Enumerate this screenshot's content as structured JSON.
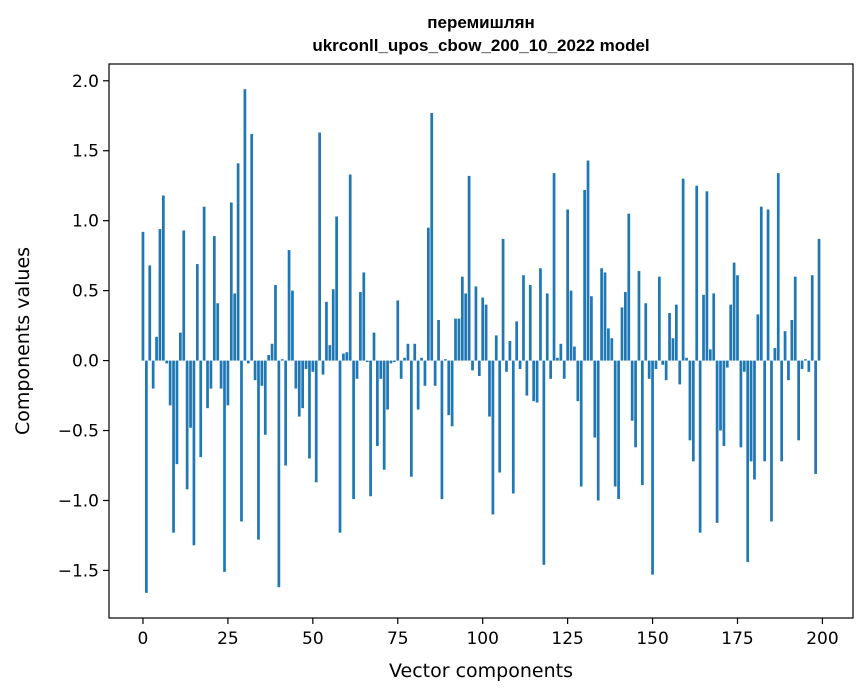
{
  "chart_data": {
    "type": "bar",
    "title_line1": "перемишлян",
    "title_line2": "ukrconll_upos_cbow_200_10_2022 model",
    "xlabel": "Vector components",
    "ylabel": "Components values",
    "xlim": [
      -10,
      209
    ],
    "ylim": [
      -1.84,
      2.12
    ],
    "xticks": [
      0,
      25,
      50,
      75,
      100,
      125,
      150,
      175,
      200
    ],
    "yticks": [
      -1.5,
      -1.0,
      -0.5,
      0.0,
      0.5,
      1.0,
      1.5,
      2.0
    ],
    "ytick_labels": [
      "−1.5",
      "−1.0",
      "−0.5",
      "0.0",
      "0.5",
      "1.0",
      "1.5",
      "2.0"
    ],
    "bar_color": "#1f77b4",
    "bar_width": 0.8,
    "values": [
      0.92,
      -1.66,
      0.68,
      -0.2,
      0.17,
      0.94,
      1.18,
      -0.02,
      -0.32,
      -1.23,
      -0.74,
      0.2,
      0.93,
      -0.92,
      -0.48,
      -1.32,
      0.69,
      -0.69,
      1.1,
      -0.34,
      -0.2,
      0.89,
      0.41,
      -0.2,
      -1.51,
      -0.32,
      1.13,
      0.48,
      1.41,
      -1.15,
      1.94,
      -0.02,
      1.62,
      -0.14,
      -1.28,
      -0.18,
      -0.53,
      0.04,
      0.12,
      0.54,
      -1.62,
      0.01,
      -0.75,
      0.79,
      0.5,
      -0.2,
      -0.4,
      -0.34,
      -0.06,
      -0.7,
      -0.08,
      -0.87,
      1.63,
      -0.1,
      0.42,
      0.11,
      0.51,
      1.03,
      -1.23,
      0.05,
      0.06,
      1.33,
      -0.99,
      -0.13,
      0.49,
      0.63,
      -0.01,
      -0.97,
      0.2,
      -0.61,
      -0.13,
      -0.78,
      -0.35,
      -0.02,
      -0.01,
      0.43,
      -0.13,
      0.02,
      0.12,
      -0.83,
      0.12,
      -0.35,
      0.02,
      -0.18,
      0.95,
      1.77,
      -0.18,
      0.29,
      -0.99,
      0.01,
      -0.39,
      -0.47,
      0.3,
      0.3,
      0.6,
      0.48,
      1.32,
      -0.07,
      0.53,
      -0.11,
      0.45,
      0.4,
      -0.4,
      -1.1,
      0.18,
      -0.8,
      0.87,
      -0.08,
      0.14,
      -0.95,
      0.28,
      -0.06,
      0.61,
      -0.25,
      0.54,
      -0.29,
      -0.3,
      0.66,
      -1.46,
      0.48,
      -0.13,
      1.34,
      0.02,
      0.12,
      -0.13,
      1.08,
      0.5,
      0.1,
      -0.29,
      -0.9,
      1.22,
      1.43,
      0.46,
      -0.55,
      -1.0,
      0.66,
      0.63,
      0.23,
      0.16,
      -0.9,
      -0.99,
      0.38,
      0.49,
      1.05,
      -0.43,
      -0.62,
      0.64,
      -0.89,
      0.41,
      -0.13,
      -1.53,
      -0.06,
      0.6,
      -0.03,
      -0.14,
      0.34,
      0.16,
      0.4,
      -0.17,
      1.3,
      0.02,
      -0.57,
      -0.72,
      1.25,
      -1.23,
      0.47,
      1.21,
      0.08,
      0.48,
      -1.16,
      -0.5,
      -0.61,
      -0.05,
      0.4,
      0.7,
      0.61,
      -0.62,
      -0.08,
      -1.44,
      -0.72,
      -0.85,
      0.33,
      1.1,
      -0.72,
      1.08,
      -1.15,
      0.09,
      1.34,
      -0.72,
      0.21,
      -0.14,
      0.29,
      0.6,
      -0.57,
      -0.06,
      0.01,
      -0.08,
      0.61,
      -0.81,
      0.87
    ]
  }
}
